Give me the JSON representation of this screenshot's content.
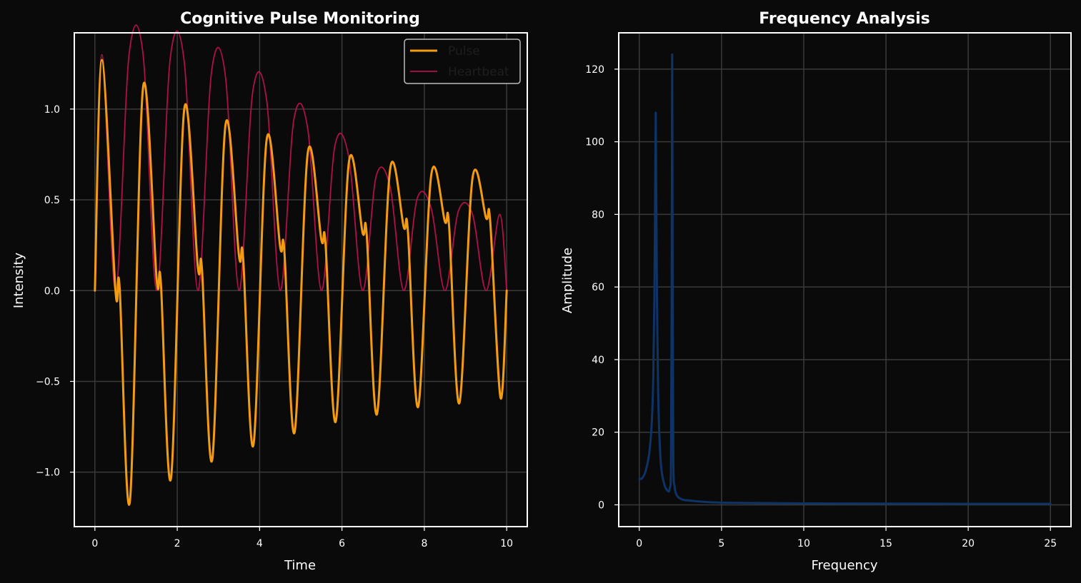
{
  "colors": {
    "background": "#0a0a0a",
    "plot_background": "#0a0a0a",
    "grid": "#3a3a3a",
    "frame": "#ffffff",
    "text": "#ffffff",
    "pulse": "#f39c12",
    "heartbeat": "#b0104a",
    "fft": "#0e3366",
    "legend_text": "#1e1e1e"
  },
  "chart_data": [
    {
      "type": "line",
      "title": "Cognitive Pulse Monitoring",
      "xlabel": "Time",
      "ylabel": "Intensity",
      "xlim": [
        -0.5,
        10.5
      ],
      "ylim": [
        -1.3,
        1.42
      ],
      "xticks": [
        0,
        2,
        4,
        6,
        8,
        10
      ],
      "xtick_labels": [
        "0",
        "2",
        "4",
        "6",
        "8",
        "10"
      ],
      "yticks": [
        -1.0,
        -0.5,
        0.0,
        0.5,
        1.0
      ],
      "ytick_labels": [
        "−1.0",
        "−0.5",
        "0.0",
        "0.5",
        "1.0"
      ],
      "grid": true,
      "legend": "upper right",
      "series": [
        {
          "name": "Pulse",
          "color": "#f39c12",
          "x": [
            0,
            0.17,
            0.5,
            0.6,
            0.85,
            1.17,
            1.5,
            1.6,
            1.85,
            2.17,
            2.5,
            2.6,
            2.85,
            3.17,
            3.5,
            3.6,
            3.85,
            4.17,
            4.5,
            4.6,
            4.85,
            5.17,
            5.5,
            5.6,
            5.85,
            6.17,
            6.5,
            6.6,
            6.85,
            7.17,
            7.5,
            7.6,
            7.85,
            8.17,
            8.5,
            8.6,
            8.85,
            9.17,
            9.5,
            9.6,
            9.85,
            10
          ],
          "y": [
            0,
            1.27,
            0.0,
            0.02,
            -1.16,
            1.12,
            0.06,
            0.05,
            -1.03,
            1.0,
            0.13,
            0.12,
            -0.93,
            0.91,
            0.19,
            0.18,
            -0.85,
            0.83,
            0.24,
            0.22,
            -0.78,
            0.76,
            0.28,
            0.26,
            -0.72,
            0.71,
            0.32,
            0.31,
            -0.68,
            0.67,
            0.35,
            0.33,
            -0.64,
            0.64,
            0.38,
            0.36,
            -0.62,
            0.62,
            0.4,
            0.38,
            -0.59,
            0.0
          ]
        },
        {
          "name": "Heartbeat",
          "color": "#b0104a",
          "x": [
            0,
            0.17,
            0.5,
            0.83,
            1.17,
            1.5,
            1.83,
            2.17,
            2.5,
            2.83,
            3.17,
            3.5,
            3.83,
            4.17,
            4.5,
            4.83,
            5.17,
            5.5,
            5.83,
            6.17,
            6.5,
            6.83,
            7.17,
            7.5,
            7.83,
            8.17,
            8.5,
            8.83,
            9.17,
            9.5,
            9.83,
            10
          ],
          "y": [
            0,
            1.3,
            0.0,
            1.3,
            1.3,
            0.0,
            1.28,
            1.26,
            0.0,
            1.2,
            1.18,
            0.0,
            1.09,
            1.05,
            0.0,
            0.94,
            0.89,
            0.0,
            0.8,
            0.73,
            0.0,
            0.63,
            0.57,
            0.0,
            0.51,
            0.45,
            0.0,
            0.44,
            0.42,
            0.0,
            0.42,
            0.0
          ]
        }
      ]
    },
    {
      "type": "line",
      "title": "Frequency Analysis",
      "xlabel": "Frequency",
      "ylabel": "Amplitude",
      "xlim": [
        -1.25,
        26.25
      ],
      "ylim": [
        -6,
        130
      ],
      "xticks": [
        0,
        5,
        10,
        15,
        20,
        25
      ],
      "xtick_labels": [
        "0",
        "5",
        "10",
        "15",
        "20",
        "25"
      ],
      "yticks": [
        0,
        20,
        40,
        60,
        80,
        100,
        120
      ],
      "ytick_labels": [
        "0",
        "20",
        "40",
        "60",
        "80",
        "100",
        "120"
      ],
      "grid": true,
      "series": [
        {
          "color": "#0e3366",
          "x": [
            0,
            0.2,
            0.4,
            0.6,
            0.75,
            0.85,
            0.92,
            0.97,
            1.0,
            1.03,
            1.08,
            1.15,
            1.3,
            1.5,
            1.7,
            1.85,
            1.93,
            1.97,
            2.0,
            2.03,
            2.07,
            2.15,
            2.3,
            2.6,
            3.0,
            4.0,
            5.0,
            7.0,
            10.0,
            15.0,
            20.0,
            25.0
          ],
          "y": [
            7,
            7.5,
            9.5,
            14,
            22,
            35,
            58,
            90,
            108,
            88,
            55,
            30,
            12,
            6,
            4,
            4.5,
            12,
            60,
            124,
            55,
            12,
            5,
            2.5,
            1.5,
            1.2,
            0.8,
            0.6,
            0.5,
            0.4,
            0.35,
            0.3,
            0.3
          ]
        }
      ]
    }
  ]
}
